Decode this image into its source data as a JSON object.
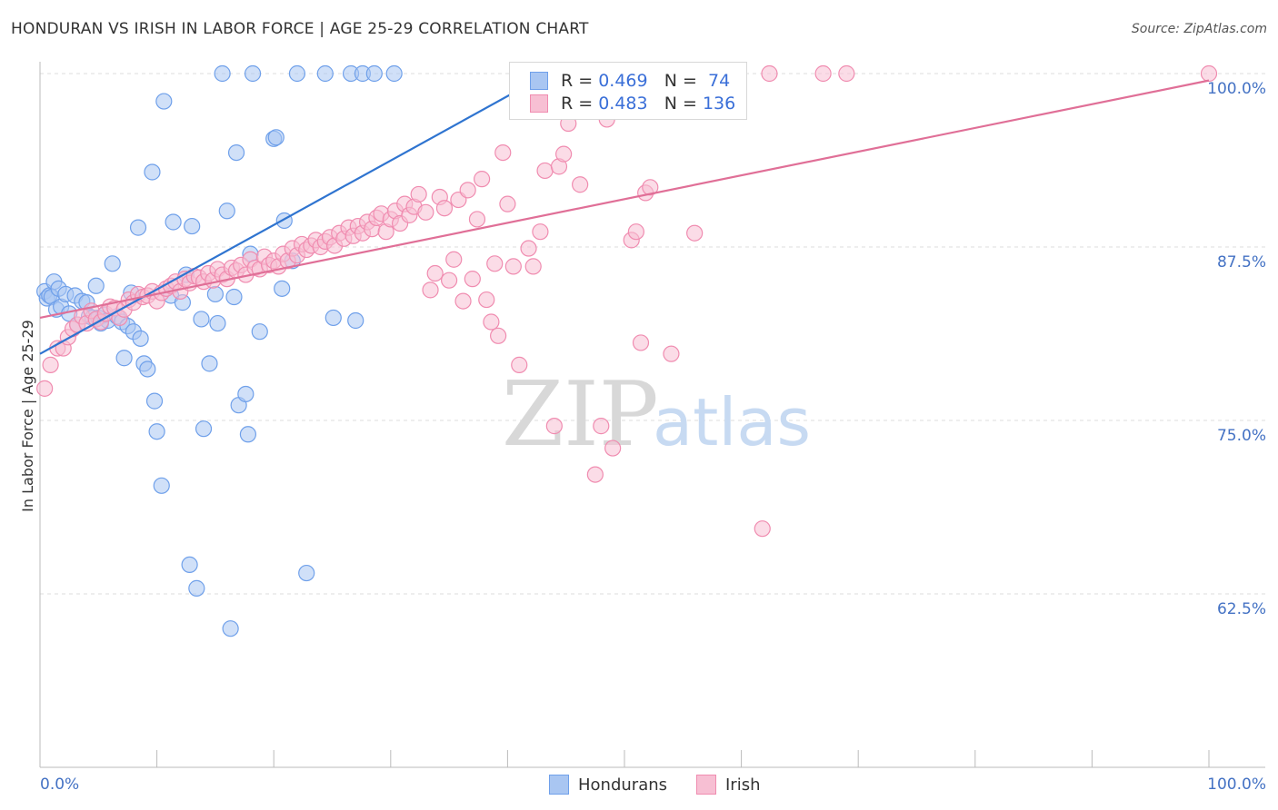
{
  "title": "HONDURAN VS IRISH IN LABOR FORCE | AGE 25-29 CORRELATION CHART",
  "source": "Source: ZipAtlas.com",
  "watermark": {
    "zip": "ZIP",
    "atlas": "atlas"
  },
  "colors": {
    "blue": "#6fa0ea",
    "blue_fill": "#a9c6f2",
    "blue_line": "#2f74d0",
    "pink": "#f08cb0",
    "pink_fill": "#f7bfd3",
    "pink_line": "#e06f97",
    "tick_label": "#4472c4",
    "grid": "#dddddd"
  },
  "legend": {
    "r_label": "R = ",
    "n_label": "N = ",
    "rows": [
      {
        "series": "Hondurans",
        "r": "0.469",
        "n": " 74"
      },
      {
        "series": "Irish",
        "r": "0.483",
        "n": "136"
      }
    ]
  },
  "bottom_legend": [
    "Hondurans",
    "Irish"
  ],
  "chart_data": {
    "type": "scatter",
    "title": "HONDURAN VS IRISH IN LABOR FORCE | AGE 25-29 CORRELATION CHART",
    "xlabel": "",
    "ylabel": "In Labor Force | Age 25-29",
    "xlim": [
      0,
      100
    ],
    "ylim": [
      52,
      100.5
    ],
    "x_tick_labels": [
      "0.0%",
      "100.0%"
    ],
    "y_ticks": [
      62.5,
      75.0,
      87.5,
      100.0
    ],
    "y_tick_labels": [
      "62.5%",
      "75.0%",
      "87.5%",
      "100.0%"
    ],
    "grid": true,
    "series": [
      {
        "name": "Hondurans",
        "r": 0.469,
        "n": 74,
        "trend": {
          "x": [
            0,
            43.5
          ],
          "y": [
            79.8,
            100.0
          ]
        },
        "points": [
          [
            0.4,
            84.3
          ],
          [
            0.6,
            83.8
          ],
          [
            0.8,
            84.0
          ],
          [
            1.0,
            83.9
          ],
          [
            1.2,
            85.0
          ],
          [
            1.4,
            83.0
          ],
          [
            1.6,
            84.5
          ],
          [
            1.8,
            83.2
          ],
          [
            2.2,
            84.1
          ],
          [
            2.5,
            82.7
          ],
          [
            3.0,
            84.0
          ],
          [
            3.2,
            81.9
          ],
          [
            3.6,
            83.6
          ],
          [
            4.0,
            83.5
          ],
          [
            4.2,
            82.5
          ],
          [
            4.5,
            82.4
          ],
          [
            4.8,
            84.7
          ],
          [
            5.0,
            82.4
          ],
          [
            5.2,
            82.0
          ],
          [
            5.5,
            82.6
          ],
          [
            5.8,
            82.2
          ],
          [
            6.2,
            86.3
          ],
          [
            6.6,
            82.5
          ],
          [
            7.0,
            82.1
          ],
          [
            7.2,
            79.5
          ],
          [
            7.5,
            81.8
          ],
          [
            7.8,
            84.2
          ],
          [
            8.0,
            81.4
          ],
          [
            8.4,
            88.9
          ],
          [
            8.6,
            80.9
          ],
          [
            8.9,
            79.1
          ],
          [
            9.2,
            78.7
          ],
          [
            9.6,
            92.9
          ],
          [
            9.8,
            76.4
          ],
          [
            10.0,
            74.2
          ],
          [
            10.4,
            70.3
          ],
          [
            10.6,
            98.0
          ],
          [
            11.2,
            84.0
          ],
          [
            11.4,
            89.3
          ],
          [
            12.2,
            83.5
          ],
          [
            12.5,
            85.5
          ],
          [
            12.8,
            64.6
          ],
          [
            13.0,
            89.0
          ],
          [
            13.4,
            62.9
          ],
          [
            13.8,
            82.3
          ],
          [
            14.0,
            74.4
          ],
          [
            14.5,
            79.1
          ],
          [
            15.0,
            84.1
          ],
          [
            15.2,
            82.0
          ],
          [
            15.6,
            100.0
          ],
          [
            16.0,
            90.1
          ],
          [
            16.3,
            60.0
          ],
          [
            16.6,
            83.9
          ],
          [
            16.8,
            94.3
          ],
          [
            17.0,
            76.1
          ],
          [
            17.6,
            76.9
          ],
          [
            17.8,
            74.0
          ],
          [
            18.0,
            87.0
          ],
          [
            18.2,
            100.0
          ],
          [
            18.8,
            81.4
          ],
          [
            20.0,
            95.3
          ],
          [
            20.2,
            95.4
          ],
          [
            20.7,
            84.5
          ],
          [
            20.9,
            89.4
          ],
          [
            21.6,
            86.5
          ],
          [
            22.0,
            100.0
          ],
          [
            22.8,
            64.0
          ],
          [
            24.4,
            100.0
          ],
          [
            25.1,
            82.4
          ],
          [
            26.6,
            100.0
          ],
          [
            27.0,
            82.2
          ],
          [
            27.6,
            100.0
          ],
          [
            28.6,
            100.0
          ],
          [
            30.3,
            100.0
          ]
        ]
      },
      {
        "name": "Irish",
        "r": 0.483,
        "n": 136,
        "trend": {
          "x": [
            0,
            100
          ],
          "y": [
            82.4,
            99.5
          ]
        },
        "points": [
          [
            0.4,
            77.3
          ],
          [
            0.9,
            79.0
          ],
          [
            1.5,
            80.2
          ],
          [
            2.0,
            80.2
          ],
          [
            2.4,
            81.0
          ],
          [
            2.8,
            81.6
          ],
          [
            3.2,
            81.9
          ],
          [
            3.6,
            82.5
          ],
          [
            4.0,
            82.0
          ],
          [
            4.4,
            82.9
          ],
          [
            4.8,
            82.3
          ],
          [
            5.2,
            82.1
          ],
          [
            5.6,
            82.7
          ],
          [
            6.0,
            83.2
          ],
          [
            6.4,
            83.1
          ],
          [
            6.8,
            82.4
          ],
          [
            7.2,
            83.0
          ],
          [
            7.6,
            83.7
          ],
          [
            8.0,
            83.5
          ],
          [
            8.4,
            84.1
          ],
          [
            8.8,
            83.9
          ],
          [
            9.2,
            84.0
          ],
          [
            9.6,
            84.3
          ],
          [
            10.0,
            83.6
          ],
          [
            10.4,
            84.2
          ],
          [
            10.8,
            84.5
          ],
          [
            11.2,
            84.7
          ],
          [
            11.6,
            85.0
          ],
          [
            12.0,
            84.3
          ],
          [
            12.4,
            85.2
          ],
          [
            12.8,
            84.9
          ],
          [
            13.2,
            85.4
          ],
          [
            13.6,
            85.3
          ],
          [
            14.0,
            85.0
          ],
          [
            14.4,
            85.6
          ],
          [
            14.8,
            85.1
          ],
          [
            15.2,
            85.9
          ],
          [
            15.6,
            85.5
          ],
          [
            16.0,
            85.2
          ],
          [
            16.4,
            86.0
          ],
          [
            16.8,
            85.8
          ],
          [
            17.2,
            86.2
          ],
          [
            17.6,
            85.5
          ],
          [
            18.0,
            86.6
          ],
          [
            18.4,
            86.0
          ],
          [
            18.8,
            85.9
          ],
          [
            19.2,
            86.8
          ],
          [
            19.6,
            86.2
          ],
          [
            20.0,
            86.5
          ],
          [
            20.4,
            86.1
          ],
          [
            20.8,
            87.0
          ],
          [
            21.2,
            86.5
          ],
          [
            21.6,
            87.4
          ],
          [
            22.0,
            86.9
          ],
          [
            22.4,
            87.7
          ],
          [
            22.8,
            87.3
          ],
          [
            23.2,
            87.6
          ],
          [
            23.6,
            88.0
          ],
          [
            24.0,
            87.5
          ],
          [
            24.4,
            87.9
          ],
          [
            24.8,
            88.2
          ],
          [
            25.2,
            87.6
          ],
          [
            25.6,
            88.5
          ],
          [
            26.0,
            88.1
          ],
          [
            26.4,
            88.9
          ],
          [
            26.8,
            88.3
          ],
          [
            27.2,
            89.0
          ],
          [
            27.6,
            88.5
          ],
          [
            28.0,
            89.3
          ],
          [
            28.4,
            88.8
          ],
          [
            28.8,
            89.6
          ],
          [
            29.2,
            89.9
          ],
          [
            29.6,
            88.6
          ],
          [
            30.0,
            89.5
          ],
          [
            30.4,
            90.1
          ],
          [
            30.8,
            89.2
          ],
          [
            31.2,
            90.6
          ],
          [
            31.6,
            89.8
          ],
          [
            32.0,
            90.4
          ],
          [
            32.4,
            91.3
          ],
          [
            33.0,
            90.0
          ],
          [
            33.4,
            84.4
          ],
          [
            33.8,
            85.6
          ],
          [
            34.2,
            91.1
          ],
          [
            34.6,
            90.3
          ],
          [
            35.0,
            85.1
          ],
          [
            35.4,
            86.6
          ],
          [
            35.8,
            90.9
          ],
          [
            36.2,
            83.6
          ],
          [
            36.6,
            91.6
          ],
          [
            37.0,
            85.2
          ],
          [
            37.4,
            89.5
          ],
          [
            37.8,
            92.4
          ],
          [
            38.2,
            83.7
          ],
          [
            38.6,
            82.1
          ],
          [
            38.9,
            86.3
          ],
          [
            39.2,
            81.1
          ],
          [
            39.6,
            94.3
          ],
          [
            40.0,
            90.6
          ],
          [
            40.5,
            86.1
          ],
          [
            41.0,
            79.0
          ],
          [
            41.4,
            100.0
          ],
          [
            41.8,
            87.4
          ],
          [
            42.2,
            86.1
          ],
          [
            42.8,
            88.6
          ],
          [
            43.2,
            93.0
          ],
          [
            43.6,
            100.0
          ],
          [
            44.0,
            74.6
          ],
          [
            44.4,
            93.3
          ],
          [
            44.8,
            94.2
          ],
          [
            45.2,
            96.4
          ],
          [
            45.8,
            100.0
          ],
          [
            46.2,
            92.0
          ],
          [
            46.6,
            100.0
          ],
          [
            47.0,
            99.5
          ],
          [
            47.5,
            71.1
          ],
          [
            48.0,
            74.6
          ],
          [
            48.5,
            96.7
          ],
          [
            49.0,
            73.0
          ],
          [
            49.4,
            100.0
          ],
          [
            50.0,
            100.0
          ],
          [
            50.6,
            88.0
          ],
          [
            51.0,
            88.6
          ],
          [
            51.4,
            80.6
          ],
          [
            51.8,
            91.4
          ],
          [
            52.2,
            91.8
          ],
          [
            53.0,
            100.0
          ],
          [
            54.0,
            79.8
          ],
          [
            56.0,
            88.5
          ],
          [
            58.0,
            100.0
          ],
          [
            59.6,
            100.0
          ],
          [
            61.8,
            67.2
          ],
          [
            62.4,
            100.0
          ],
          [
            67.0,
            100.0
          ],
          [
            69.0,
            100.0
          ],
          [
            100.0,
            100.0
          ]
        ]
      }
    ]
  }
}
